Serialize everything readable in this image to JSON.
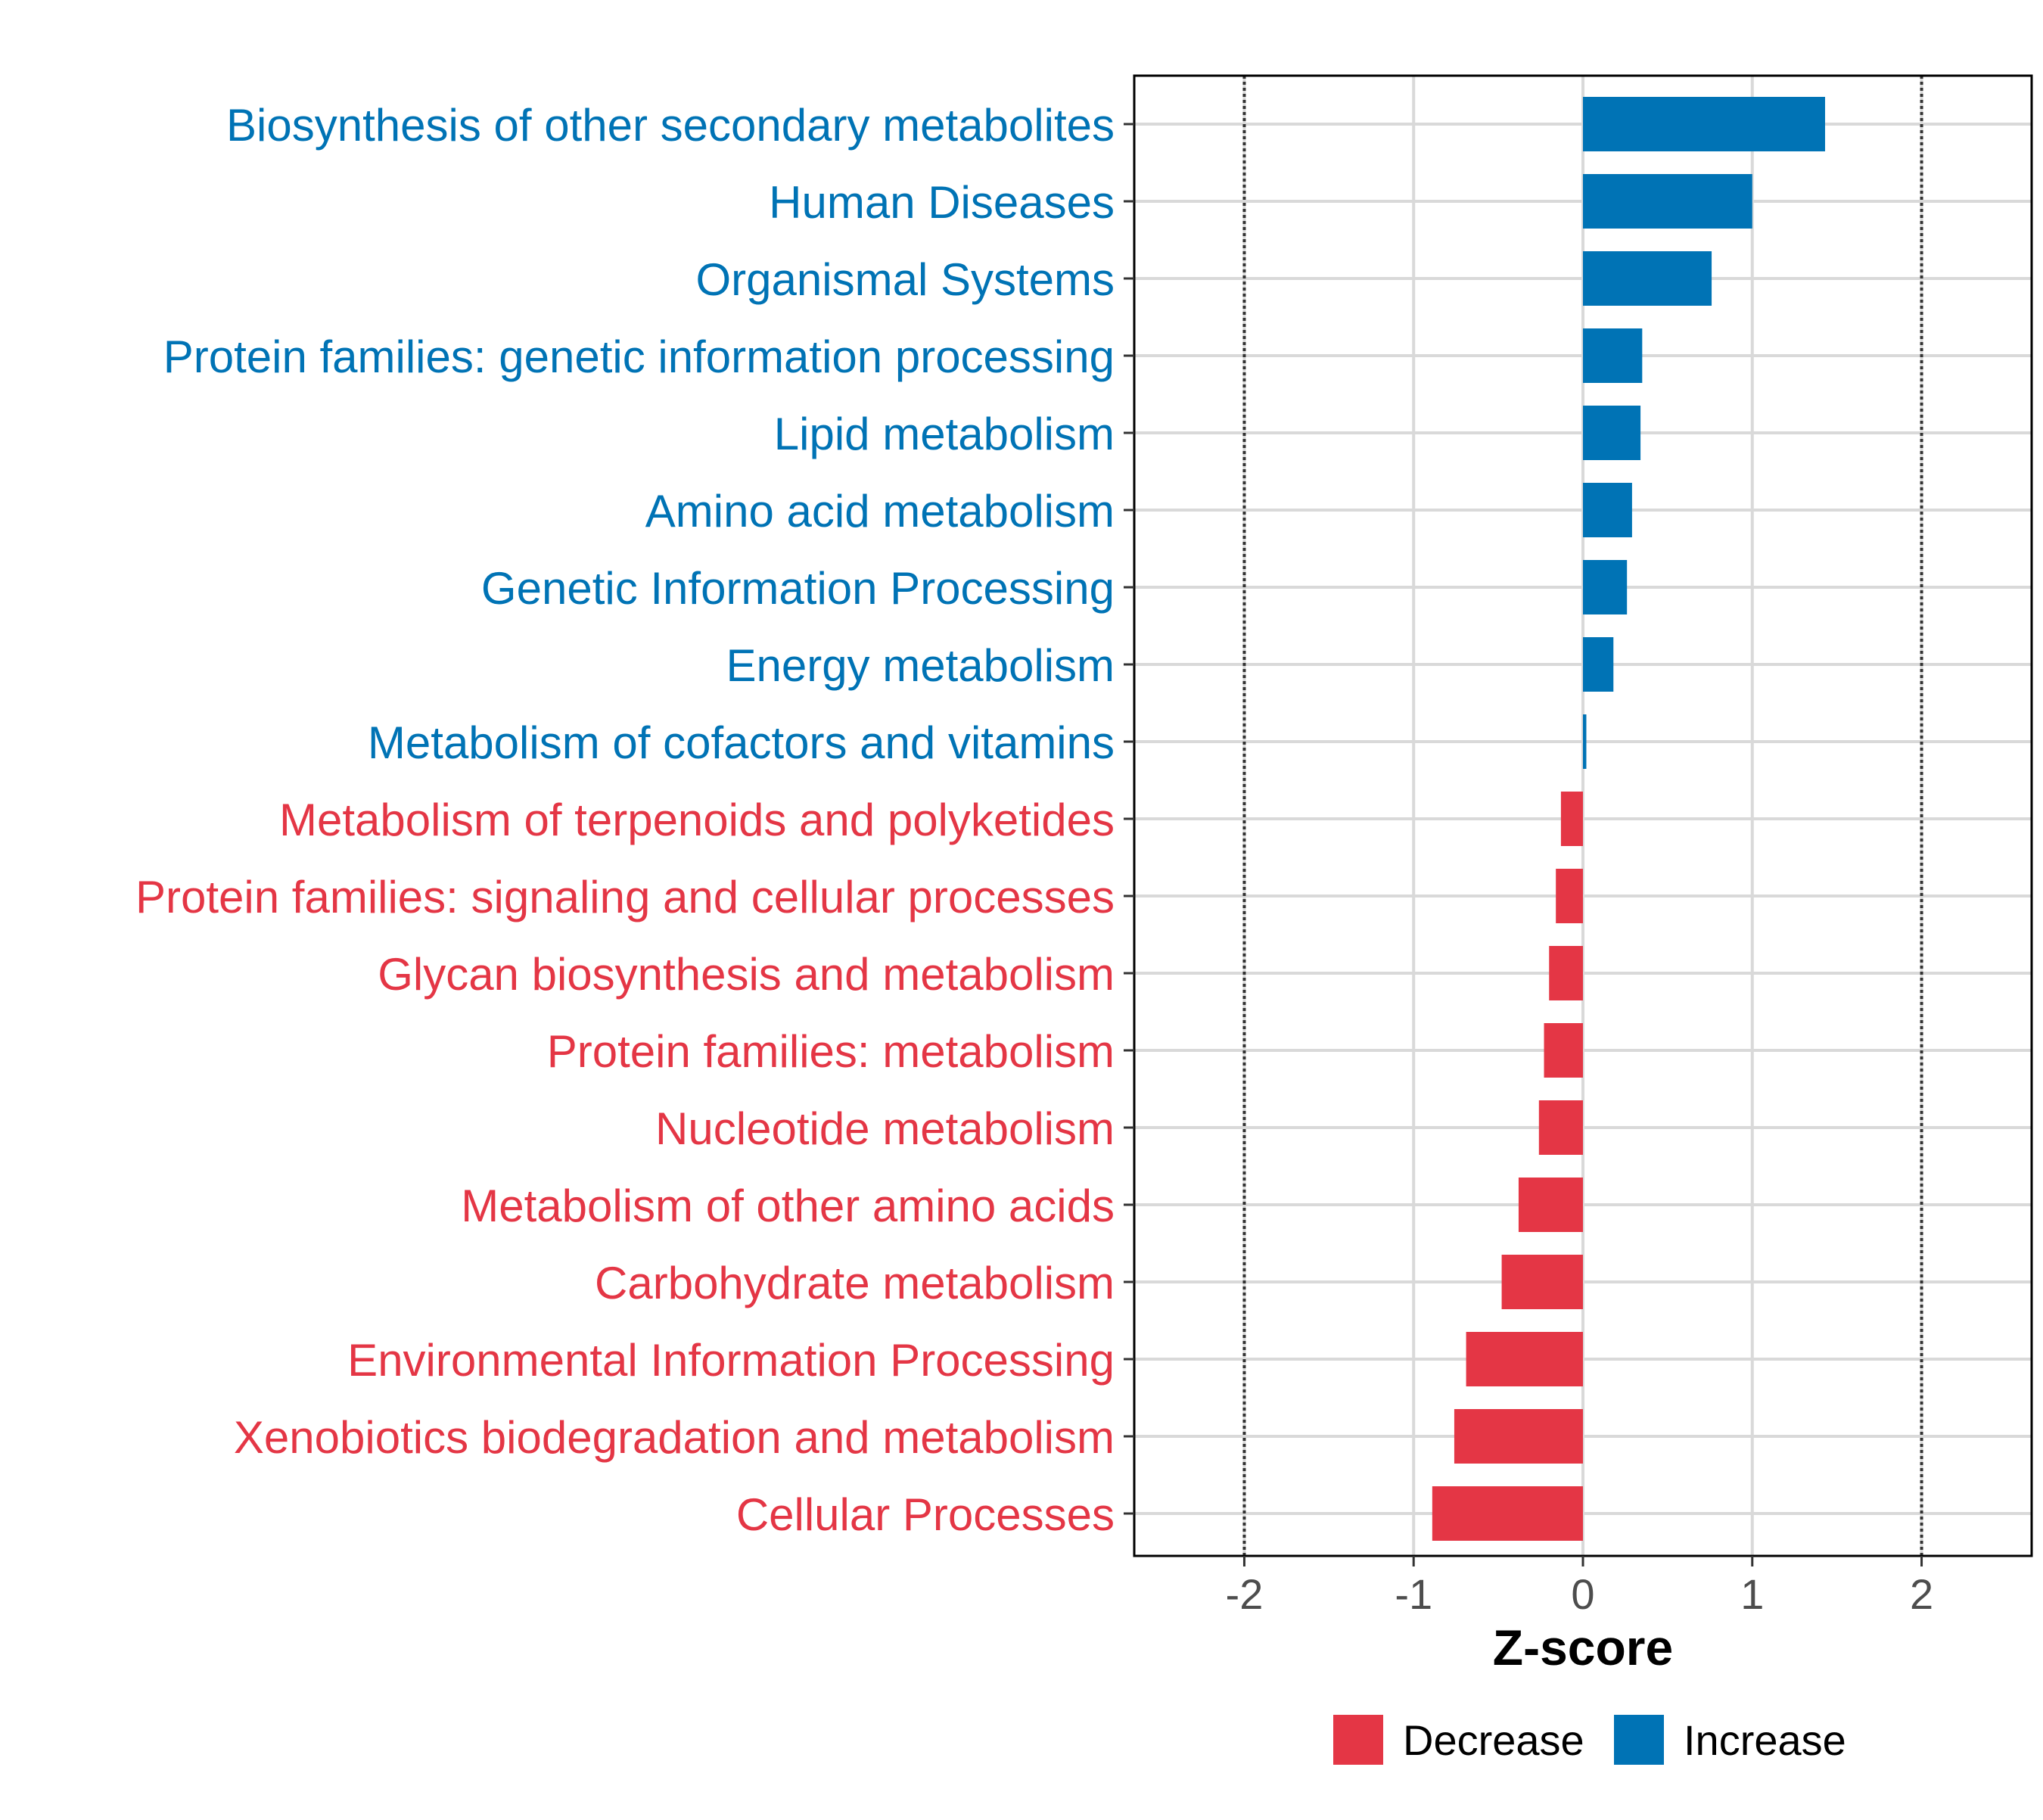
{
  "chart_data": {
    "type": "bar",
    "orientation": "horizontal",
    "title": "",
    "xlabel": "Z-score",
    "ylabel": "",
    "xlim": [
      -2.65,
      2.65
    ],
    "xticks": [
      -2,
      -1,
      0,
      1,
      2
    ],
    "xtick_labels": [
      "-2",
      "-1",
      "0",
      "1",
      "2"
    ],
    "reference_lines": [
      -2,
      2
    ],
    "grid": true,
    "colors": {
      "Decrease": "#e43645",
      "Increase": "#0073b5"
    },
    "categories": [
      "Biosynthesis of other secondary metabolites",
      "Human Diseases",
      "Organismal Systems",
      "Protein families: genetic information processing",
      "Lipid metabolism",
      "Amino acid metabolism",
      "Genetic Information Processing",
      "Energy metabolism",
      "Metabolism of cofactors and vitamins",
      "Metabolism of terpenoids and polyketides",
      "Protein families: signaling and cellular processes",
      "Glycan biosynthesis and metabolism",
      "Protein families: metabolism",
      "Nucleotide metabolism",
      "Metabolism of other amino acids",
      "Carbohydrate metabolism",
      "Environmental Information Processing",
      "Xenobiotics biodegradation and metabolism",
      "Cellular Processes"
    ],
    "values": [
      1.43,
      1.0,
      0.76,
      0.35,
      0.34,
      0.29,
      0.26,
      0.18,
      0.02,
      -0.13,
      -0.16,
      -0.2,
      -0.23,
      -0.26,
      -0.38,
      -0.48,
      -0.69,
      -0.76,
      -0.89
    ],
    "groups": [
      "Increase",
      "Increase",
      "Increase",
      "Increase",
      "Increase",
      "Increase",
      "Increase",
      "Increase",
      "Increase",
      "Decrease",
      "Decrease",
      "Decrease",
      "Decrease",
      "Decrease",
      "Decrease",
      "Decrease",
      "Decrease",
      "Decrease",
      "Decrease"
    ],
    "legend": {
      "position": "bottom",
      "entries": [
        "Decrease",
        "Increase"
      ]
    }
  }
}
